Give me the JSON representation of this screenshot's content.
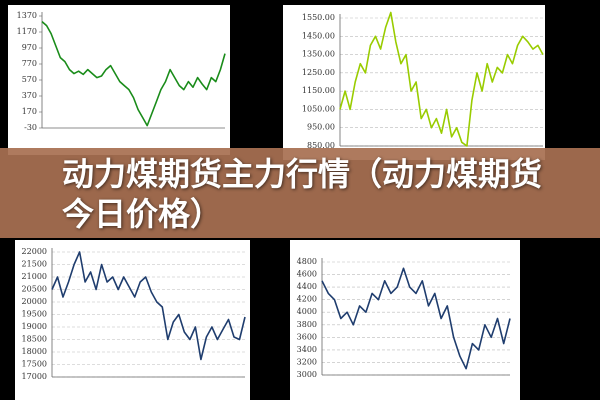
{
  "banner_title": "动力煤期货主力行情（动力煤期货今日价格）",
  "chart_data": [
    {
      "type": "line",
      "color": "#1a8c1a",
      "grid": false,
      "ylim": [
        -30,
        1370
      ],
      "yticks": [
        1370,
        1170,
        970,
        770,
        570,
        370,
        170,
        -30
      ],
      "values": [
        1300,
        1250,
        1150,
        1000,
        850,
        800,
        700,
        650,
        680,
        640,
        700,
        650,
        600,
        620,
        700,
        750,
        650,
        550,
        500,
        450,
        350,
        200,
        100,
        0,
        150,
        300,
        450,
        550,
        700,
        600,
        500,
        450,
        550,
        480,
        600,
        520,
        450,
        600,
        550,
        700,
        900
      ]
    },
    {
      "type": "line",
      "color": "#99cc00",
      "grid": true,
      "ylim": [
        850,
        1550
      ],
      "yticks": [
        {
          "value": 1550,
          "label": "1550.00"
        },
        {
          "value": 1450,
          "label": "1450.00"
        },
        {
          "value": 1350,
          "label": "1350.00"
        },
        {
          "value": 1250,
          "label": "1250.00"
        },
        {
          "value": 1150,
          "label": "1150.00"
        },
        {
          "value": 1050,
          "label": "1050.00"
        },
        {
          "value": 950,
          "label": "950.00"
        },
        {
          "value": 850,
          "label": "850.00"
        }
      ],
      "values": [
        1050,
        1150,
        1050,
        1200,
        1300,
        1250,
        1400,
        1450,
        1380,
        1500,
        1580,
        1420,
        1300,
        1350,
        1150,
        1200,
        1000,
        1050,
        950,
        1000,
        920,
        1050,
        900,
        950,
        870,
        850,
        1100,
        1250,
        1150,
        1300,
        1200,
        1280,
        1250,
        1350,
        1300,
        1400,
        1450,
        1420,
        1380,
        1400,
        1350
      ]
    },
    {
      "type": "line",
      "color": "#1f3d6e",
      "grid": true,
      "ylim": [
        17000,
        22000
      ],
      "yticks": [
        22000,
        21500,
        21000,
        20500,
        20000,
        19500,
        19000,
        18500,
        18000,
        17500,
        17000
      ],
      "values": [
        20500,
        21000,
        20200,
        20800,
        21500,
        22000,
        20800,
        21200,
        20500,
        21500,
        20800,
        21000,
        20500,
        21000,
        20600,
        20200,
        20800,
        21000,
        20400,
        20000,
        19800,
        18500,
        19200,
        19500,
        18800,
        18500,
        19000,
        17700,
        18600,
        19000,
        18500,
        18900,
        19300,
        18600,
        18500,
        19400
      ]
    },
    {
      "type": "line",
      "color": "#1f3d6e",
      "grid": true,
      "ylim": [
        3000,
        4800
      ],
      "yticks": [
        4800,
        4600,
        4400,
        4200,
        4000,
        3800,
        3600,
        3400,
        3200,
        3000
      ],
      "values": [
        4500,
        4300,
        4200,
        3900,
        4000,
        3800,
        4100,
        4000,
        4300,
        4200,
        4500,
        4300,
        4400,
        4700,
        4400,
        4300,
        4500,
        4100,
        4300,
        3900,
        4100,
        3600,
        3300,
        3100,
        3500,
        3400,
        3800,
        3600,
        3900,
        3500,
        3900
      ]
    }
  ]
}
